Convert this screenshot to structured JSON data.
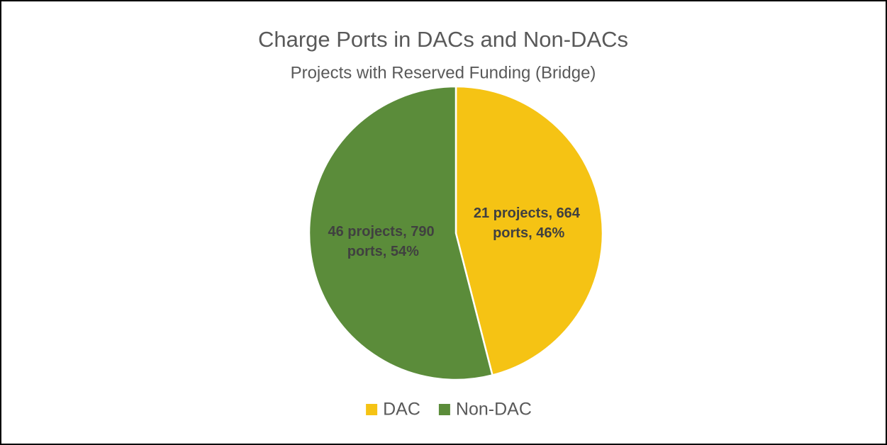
{
  "chart_data": {
    "type": "pie",
    "title": "Charge Ports in DACs and Non-DACs",
    "subtitle": "Projects with Reserved Funding (Bridge)",
    "categories": [
      "DAC",
      "Non-DAC"
    ],
    "values": [
      46,
      54
    ],
    "value_labels": [
      "21 projects, 664 ports, 46%",
      "46 projects, 790 ports, 54%"
    ],
    "colors": [
      "#f5c314",
      "#5b8c3a"
    ],
    "legend": "bottom"
  }
}
